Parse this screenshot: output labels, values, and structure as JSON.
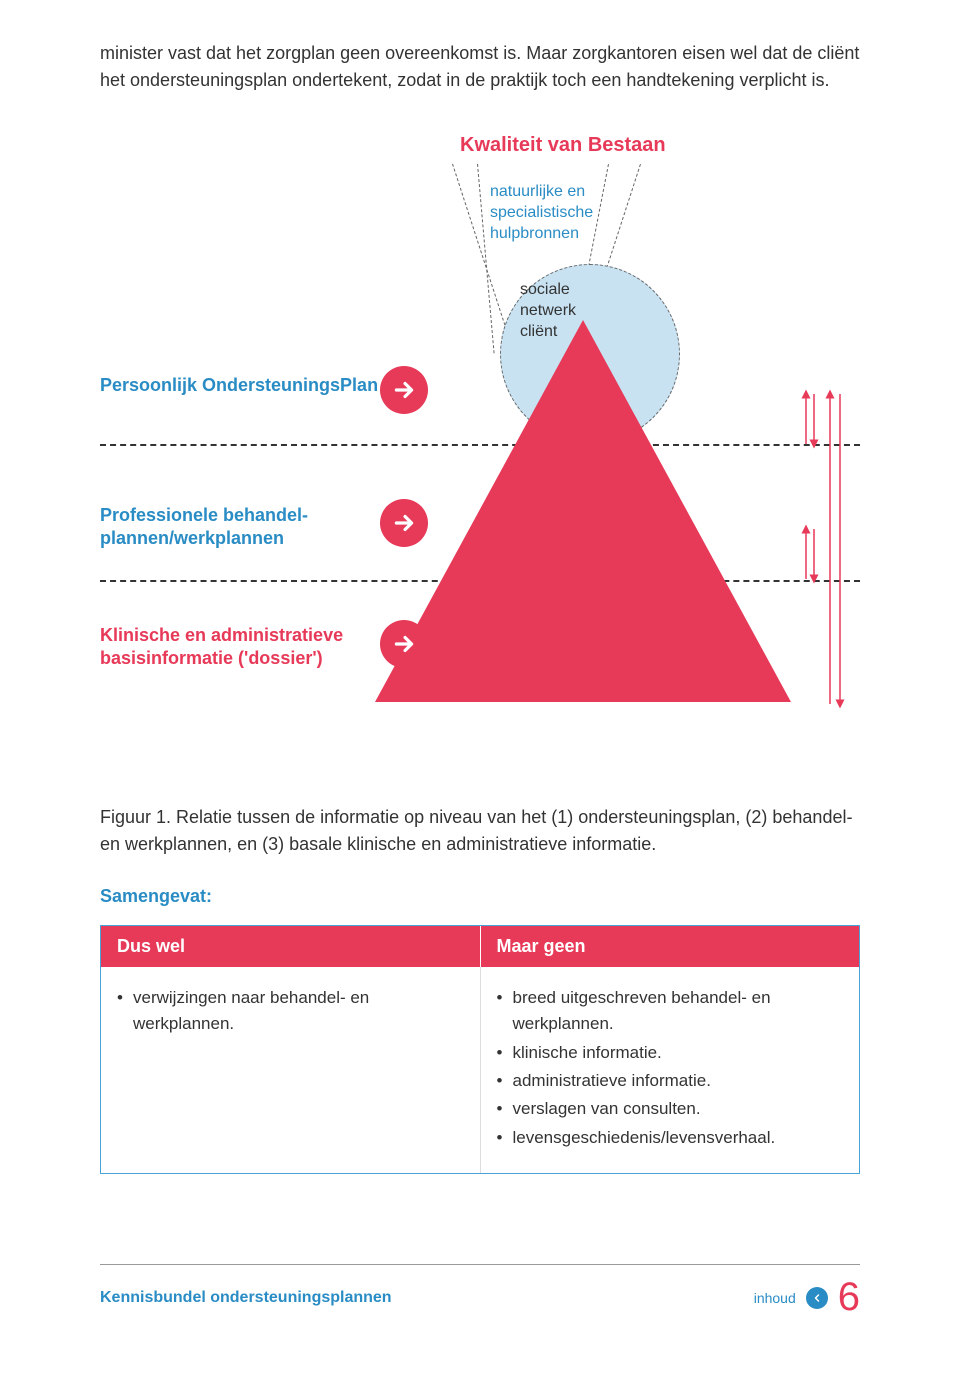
{
  "colors": {
    "accent_red": "#e73958",
    "accent_blue": "#2a8cc4",
    "light_blue": "#c8e2f2",
    "text": "#333333",
    "triangle_border": "#333333"
  },
  "intro": "minister vast dat het zorgplan geen overeenkomst is. Maar zorgkantoren eisen wel dat de cliënt het ondersteuningsplan ondertekent, zodat in de praktijk toch een handtekening verplicht is.",
  "diagram": {
    "title": "Kwaliteit van Bestaan",
    "sub1": "natuurlijke en\nspecialistische\nhulpbronnen",
    "sub2": "sociale\nnetwerk\ncliënt",
    "labels": {
      "l1": "Persoonlijk OndersteuningsPlan",
      "l2": "Professionele behandel-\nplannen/werkplannen",
      "l3": "Klinische en administratieve\nbasisinformatie ('dossier')"
    }
  },
  "caption": "Figuur 1. Relatie tussen de informatie op niveau van het (1) ondersteuningsplan, (2) behandel- en werkplannen, en (3) basale klinische en administratieve informatie.",
  "summary_label": "Samengevat:",
  "table": {
    "head_left": "Dus wel",
    "head_right": "Maar geen",
    "left_items": [
      "verwijzingen naar behandel- en werkplannen."
    ],
    "right_items": [
      "breed uitgeschreven behandel- en werkplannen.",
      "klinische informatie.",
      "administratieve informatie.",
      "verslagen van consulten.",
      "levensgeschiedenis/levensverhaal."
    ]
  },
  "footer": {
    "left": "Kennisbundel ondersteuningsplannen",
    "link": "inhoud",
    "page": "6"
  }
}
